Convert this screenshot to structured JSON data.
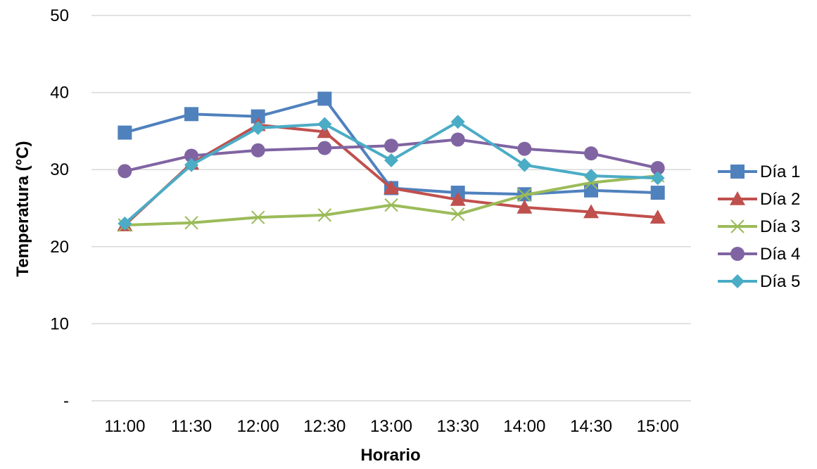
{
  "chart_data": {
    "type": "line",
    "title": "",
    "xlabel": "Horario",
    "ylabel": "Temperatura (°C)",
    "categories": [
      "11:00",
      "11:30",
      "12:00",
      "12:30",
      "13:00",
      "13:30",
      "14:00",
      "14:30",
      "15:00"
    ],
    "ylim": [
      0,
      50
    ],
    "yticks": [
      {
        "value": 0,
        "label": "-"
      },
      {
        "value": 10,
        "label": "10"
      },
      {
        "value": 20,
        "label": "20"
      },
      {
        "value": 30,
        "label": "30"
      },
      {
        "value": 40,
        "label": "40"
      },
      {
        "value": 50,
        "label": "50"
      }
    ],
    "grid": true,
    "legend_position": "right",
    "series": [
      {
        "name": "Día 1",
        "color": "#4F81BD",
        "marker": "square",
        "values": [
          34.8,
          37.2,
          36.9,
          39.2,
          27.6,
          27.0,
          26.8,
          27.3,
          27.0
        ]
      },
      {
        "name": "Día 2",
        "color": "#C0504D",
        "marker": "triangle",
        "values": [
          22.8,
          30.8,
          35.8,
          34.9,
          27.6,
          26.1,
          25.1,
          24.5,
          23.8
        ]
      },
      {
        "name": "Día 3",
        "color": "#9BBB59",
        "marker": "x",
        "values": [
          22.8,
          23.1,
          23.8,
          24.1,
          25.4,
          24.2,
          26.7,
          28.3,
          29.2
        ]
      },
      {
        "name": "Día 4",
        "color": "#8064A2",
        "marker": "circle",
        "values": [
          29.8,
          31.8,
          32.5,
          32.8,
          33.1,
          33.9,
          32.7,
          32.1,
          30.2
        ]
      },
      {
        "name": "Día 5",
        "color": "#4BACC6",
        "marker": "diamond",
        "values": [
          23.0,
          30.6,
          35.4,
          35.9,
          31.2,
          36.2,
          30.6,
          29.2,
          28.9
        ]
      }
    ]
  }
}
